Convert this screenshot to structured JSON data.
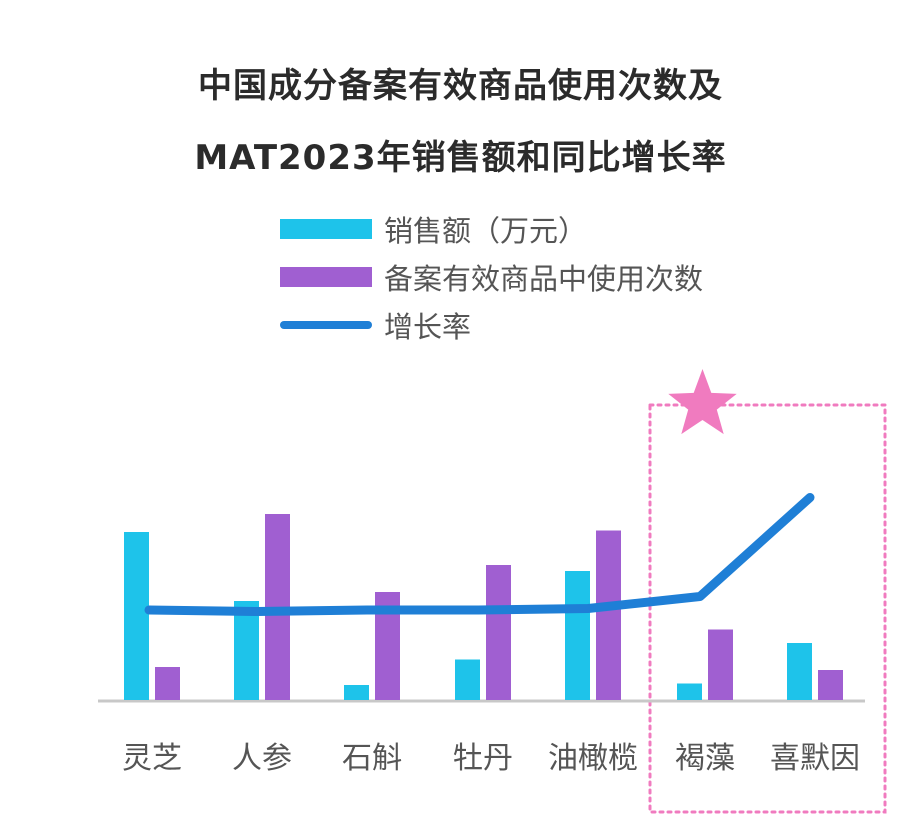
{
  "title_lines": [
    "中国成分备案有效商品使用次数及",
    "MAT2023年销售额和同比增长率"
  ],
  "colors": {
    "sales": "#1ec3ea",
    "usage": "#a05fd1",
    "growth": "#1f7fd6",
    "highlight": "#f07bbf",
    "axis": "#c8c8c8",
    "text": "#555555"
  },
  "legend": [
    {
      "label": "销售额（万元）",
      "kind": "bar",
      "color": "#1ec3ea"
    },
    {
      "label": "备案有效商品中使用次数",
      "kind": "bar",
      "color": "#a05fd1"
    },
    {
      "label": "增长率",
      "kind": "line",
      "color": "#1f7fd6"
    }
  ],
  "chart_data": {
    "type": "bar",
    "categories": [
      "灵芝",
      "人参",
      "石斛",
      "牡丹",
      "油橄榄",
      "褐藻",
      "喜默因"
    ],
    "series": [
      {
        "name": "销售额（万元）",
        "type": "bar",
        "values": [
          112,
          66,
          10,
          27,
          86,
          11,
          38
        ]
      },
      {
        "name": "备案有效商品中使用次数",
        "type": "bar",
        "values": [
          22,
          124,
          72,
          90,
          113,
          47,
          20
        ]
      },
      {
        "name": "增长率",
        "type": "line",
        "values": [
          60,
          59,
          60,
          60,
          61,
          69,
          135
        ]
      }
    ],
    "ylim": [
      0,
      150
    ],
    "axis_labels_shown": false,
    "grid": false,
    "legend_position": "top",
    "highlight_categories": [
      "褐藻",
      "喜默因"
    ],
    "highlight_marker": "star"
  }
}
